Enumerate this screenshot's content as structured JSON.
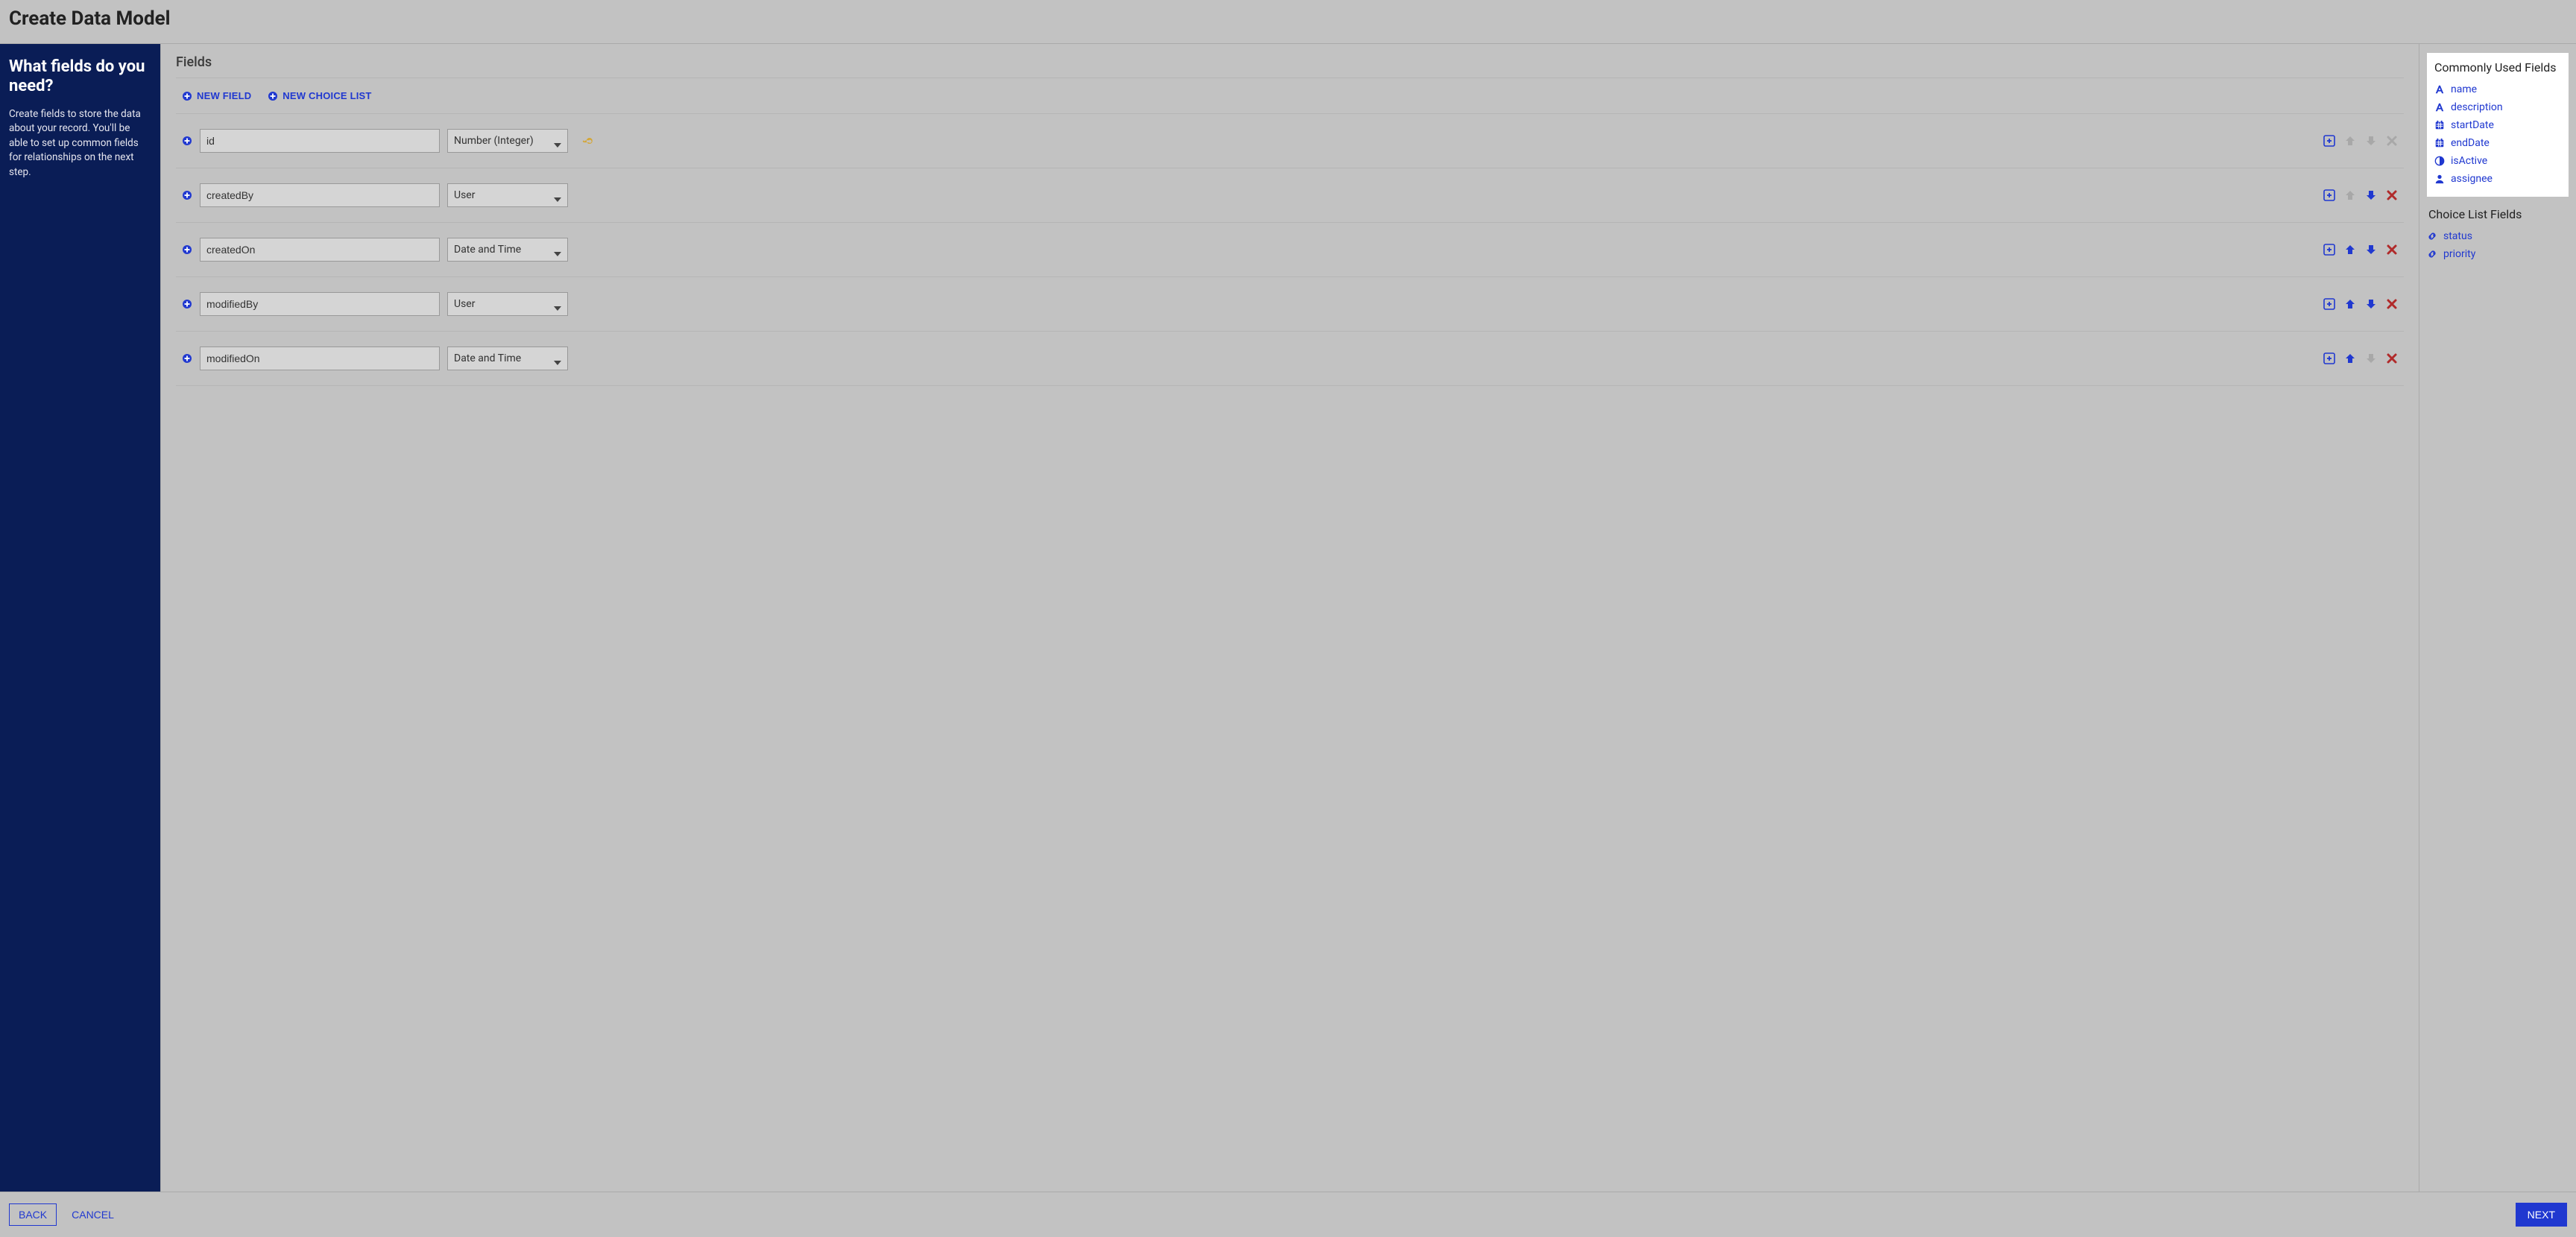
{
  "colors": {
    "overlay_bg": "#c2c2c2",
    "sidebar_bg": "#0a1d56",
    "accent": "#2038d0",
    "input_bg": "#d5d5d5",
    "border": "#b5b5b5",
    "key_icon": "#d4a636",
    "disabled": "#a8a8a8",
    "danger": "#b02a2a"
  },
  "header": {
    "title": "Create Data Model"
  },
  "sidebar": {
    "heading": "What fields do you need?",
    "body": "Create fields to store the data about your record. You'll be able to set up common fields for relationships on the next step."
  },
  "center": {
    "title": "Fields",
    "toolbar": {
      "new_field": "NEW FIELD",
      "new_choice": "NEW CHOICE LIST"
    }
  },
  "rows": [
    {
      "name": "id",
      "type": "Number (Integer)",
      "key": true,
      "exp": true,
      "up": false,
      "down": false,
      "del": false
    },
    {
      "name": "createdBy",
      "type": "User",
      "key": false,
      "exp": true,
      "up": false,
      "down": true,
      "del": true
    },
    {
      "name": "createdOn",
      "type": "Date and Time",
      "key": false,
      "exp": true,
      "up": true,
      "down": true,
      "del": true
    },
    {
      "name": "modifiedBy",
      "type": "User",
      "key": false,
      "exp": true,
      "up": true,
      "down": true,
      "del": true
    },
    {
      "name": "modifiedOn",
      "type": "Date and Time",
      "key": false,
      "exp": true,
      "up": true,
      "down": false,
      "del": true
    }
  ],
  "right": {
    "common_title": "Commonly Used Fields",
    "common": [
      {
        "icon": "font",
        "label": "name"
      },
      {
        "icon": "font",
        "label": "description"
      },
      {
        "icon": "date",
        "label": "startDate"
      },
      {
        "icon": "date",
        "label": "endDate"
      },
      {
        "icon": "half",
        "label": "isActive"
      },
      {
        "icon": "user",
        "label": "assignee"
      }
    ],
    "choice_title": "Choice List Fields",
    "choice": [
      {
        "icon": "link",
        "label": "status"
      },
      {
        "icon": "link",
        "label": "priority"
      }
    ]
  },
  "footer": {
    "back": "BACK",
    "cancel": "CANCEL",
    "next": "NEXT"
  }
}
